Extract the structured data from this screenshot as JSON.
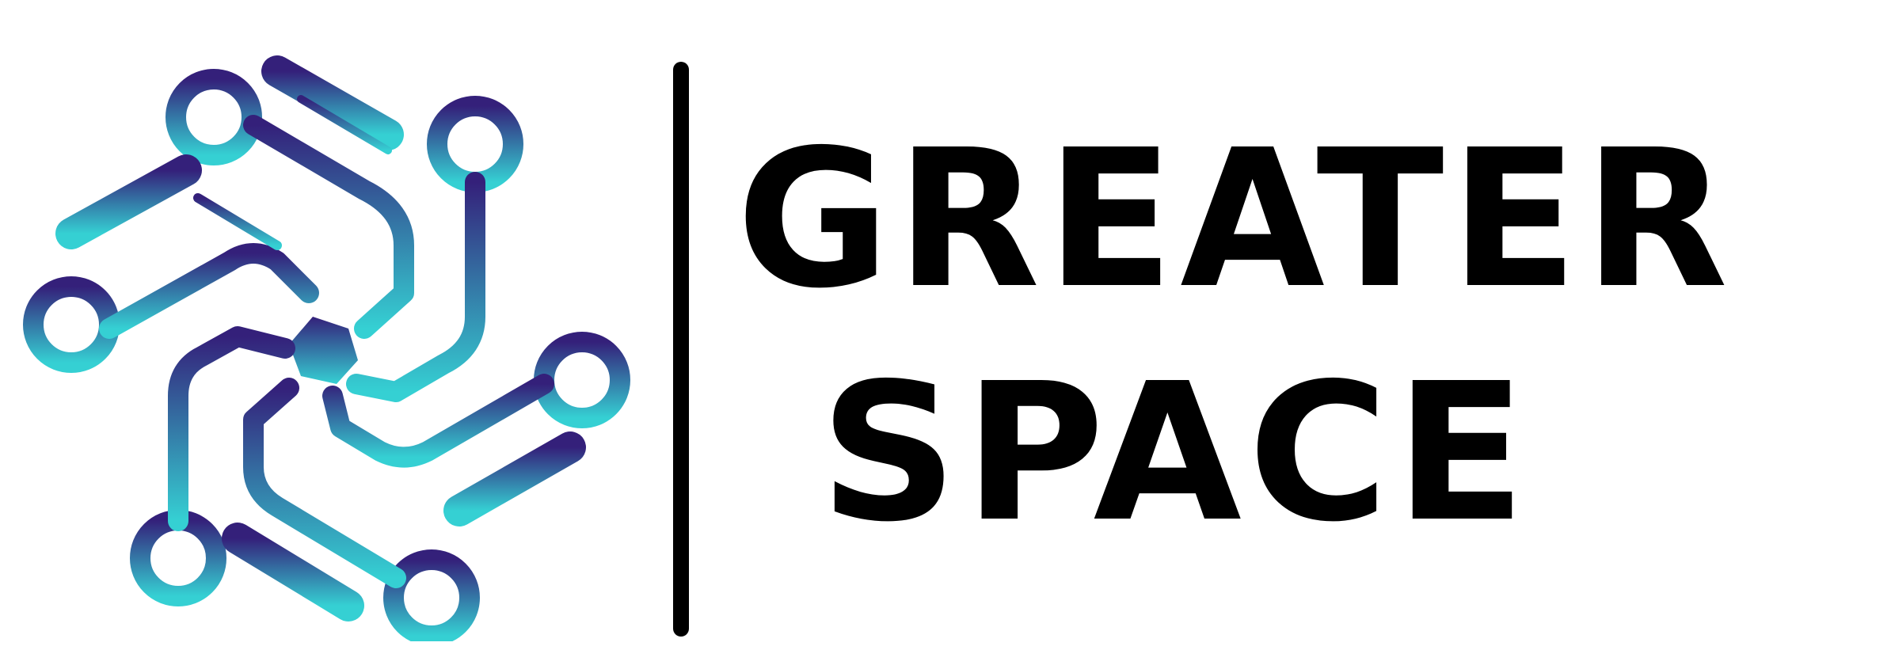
{
  "brand": {
    "name_line1": "GREATER",
    "name_line2": "SPACE",
    "text_color": "#000000",
    "gradient_top": "#34207a",
    "gradient_bottom": "#35d0d3",
    "logo_icon": "circuit-hexagon-icon"
  }
}
